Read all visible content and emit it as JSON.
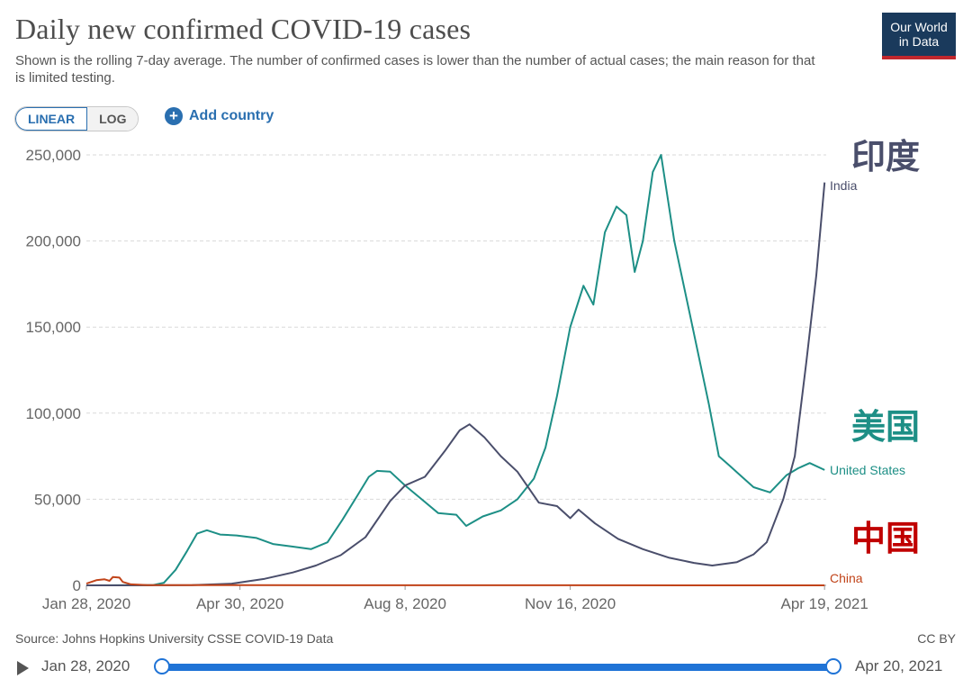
{
  "header": {
    "title": "Daily new confirmed COVID-19 cases",
    "subtitle": "Shown is the rolling 7-day average. The number of confirmed cases is lower than the number of actual cases; the main reason for that is limited testing."
  },
  "logo": {
    "line1": "Our World",
    "line2": "in Data"
  },
  "controls": {
    "linear_label": "LINEAR",
    "log_label": "LOG",
    "add_country_label": "Add country",
    "add_icon": "+"
  },
  "footer": {
    "source": "Source: Johns Hopkins University CSSE COVID-19 Data",
    "license": "CC BY"
  },
  "timeline": {
    "start": "Jan 28, 2020",
    "end": "Apr 20, 2021"
  },
  "colors": {
    "india": "#4a4e6b",
    "us": "#1d8f86",
    "china": "#c1441a",
    "annotation_red": "#c00000",
    "grid": "#d9d9d9"
  },
  "chart_data": {
    "type": "line",
    "title": "Daily new confirmed COVID-19 cases",
    "x_type": "date",
    "xlim": [
      "2020-01-28",
      "2021-04-20"
    ],
    "ylim": [
      0,
      250000
    ],
    "yticks": [
      0,
      50000,
      100000,
      150000,
      200000,
      250000
    ],
    "ytick_labels": [
      "0",
      "50,000",
      "100,000",
      "150,000",
      "200,000",
      "250,000"
    ],
    "xticks": [
      "2020-01-28",
      "2020-04-30",
      "2020-08-08",
      "2020-11-16",
      "2021-04-19"
    ],
    "xtick_labels": [
      "Jan 28, 2020",
      "Apr 30, 2020",
      "Aug 8, 2020",
      "Nov 16, 2020",
      "Apr 19, 2021"
    ],
    "grid": true,
    "series": [
      {
        "name": "United States",
        "key": "us",
        "annotation": "美国",
        "points": [
          [
            "2020-01-28",
            0
          ],
          [
            "2020-03-08",
            100
          ],
          [
            "2020-03-15",
            1500
          ],
          [
            "2020-03-22",
            9000
          ],
          [
            "2020-03-29",
            20000
          ],
          [
            "2020-04-04",
            30000
          ],
          [
            "2020-04-10",
            32000
          ],
          [
            "2020-04-18",
            29500
          ],
          [
            "2020-04-28",
            29000
          ],
          [
            "2020-05-10",
            27500
          ],
          [
            "2020-05-20",
            24000
          ],
          [
            "2020-06-01",
            22500
          ],
          [
            "2020-06-12",
            21000
          ],
          [
            "2020-06-22",
            25000
          ],
          [
            "2020-07-01",
            38000
          ],
          [
            "2020-07-10",
            52000
          ],
          [
            "2020-07-17",
            63000
          ],
          [
            "2020-07-22",
            66500
          ],
          [
            "2020-07-30",
            66000
          ],
          [
            "2020-08-08",
            58000
          ],
          [
            "2020-08-18",
            50000
          ],
          [
            "2020-08-28",
            42000
          ],
          [
            "2020-09-08",
            41000
          ],
          [
            "2020-09-14",
            34500
          ],
          [
            "2020-09-24",
            40000
          ],
          [
            "2020-10-05",
            43500
          ],
          [
            "2020-10-15",
            50000
          ],
          [
            "2020-10-25",
            62000
          ],
          [
            "2020-11-01",
            80000
          ],
          [
            "2020-11-08",
            110000
          ],
          [
            "2020-11-16",
            150000
          ],
          [
            "2020-11-24",
            174000
          ],
          [
            "2020-11-30",
            163000
          ],
          [
            "2020-12-07",
            205000
          ],
          [
            "2020-12-14",
            220000
          ],
          [
            "2020-12-20",
            215000
          ],
          [
            "2020-12-25",
            182000
          ],
          [
            "2020-12-30",
            200000
          ],
          [
            "2021-01-05",
            240000
          ],
          [
            "2021-01-10",
            250000
          ],
          [
            "2021-01-18",
            200000
          ],
          [
            "2021-01-28",
            155000
          ],
          [
            "2021-02-08",
            105000
          ],
          [
            "2021-02-14",
            75000
          ],
          [
            "2021-02-20",
            70000
          ],
          [
            "2021-02-28",
            63000
          ],
          [
            "2021-03-07",
            57000
          ],
          [
            "2021-03-17",
            54000
          ],
          [
            "2021-03-27",
            64000
          ],
          [
            "2021-04-03",
            68000
          ],
          [
            "2021-04-10",
            71000
          ],
          [
            "2021-04-19",
            67000
          ]
        ]
      },
      {
        "name": "India",
        "key": "india",
        "annotation": "印度",
        "points": [
          [
            "2020-01-28",
            0
          ],
          [
            "2020-04-01",
            100
          ],
          [
            "2020-04-25",
            1000
          ],
          [
            "2020-05-15",
            3800
          ],
          [
            "2020-06-01",
            7500
          ],
          [
            "2020-06-15",
            11500
          ],
          [
            "2020-06-30",
            17500
          ],
          [
            "2020-07-15",
            28000
          ],
          [
            "2020-07-30",
            49000
          ],
          [
            "2020-08-08",
            58000
          ],
          [
            "2020-08-20",
            63000
          ],
          [
            "2020-09-01",
            78000
          ],
          [
            "2020-09-10",
            90000
          ],
          [
            "2020-09-16",
            93500
          ],
          [
            "2020-09-25",
            86000
          ],
          [
            "2020-10-05",
            75000
          ],
          [
            "2020-10-15",
            66000
          ],
          [
            "2020-10-28",
            48000
          ],
          [
            "2020-11-08",
            46000
          ],
          [
            "2020-11-16",
            39000
          ],
          [
            "2020-11-21",
            44000
          ],
          [
            "2020-12-01",
            36000
          ],
          [
            "2020-12-15",
            27000
          ],
          [
            "2020-12-30",
            21000
          ],
          [
            "2021-01-15",
            16000
          ],
          [
            "2021-01-30",
            13000
          ],
          [
            "2021-02-10",
            11500
          ],
          [
            "2021-02-25",
            13500
          ],
          [
            "2021-03-07",
            18000
          ],
          [
            "2021-03-15",
            25000
          ],
          [
            "2021-03-25",
            50000
          ],
          [
            "2021-04-01",
            75000
          ],
          [
            "2021-04-08",
            130000
          ],
          [
            "2021-04-14",
            180000
          ],
          [
            "2021-04-19",
            234000
          ]
        ]
      },
      {
        "name": "China",
        "key": "china",
        "annotation": "中国",
        "points": [
          [
            "2020-01-28",
            1000
          ],
          [
            "2020-02-03",
            3000
          ],
          [
            "2020-02-08",
            3500
          ],
          [
            "2020-02-11",
            2600
          ],
          [
            "2020-02-13",
            4800
          ],
          [
            "2020-02-17",
            4500
          ],
          [
            "2020-02-19",
            2000
          ],
          [
            "2020-02-24",
            600
          ],
          [
            "2020-03-05",
            100
          ],
          [
            "2020-04-19",
            80
          ],
          [
            "2021-04-19",
            20
          ]
        ]
      }
    ]
  }
}
